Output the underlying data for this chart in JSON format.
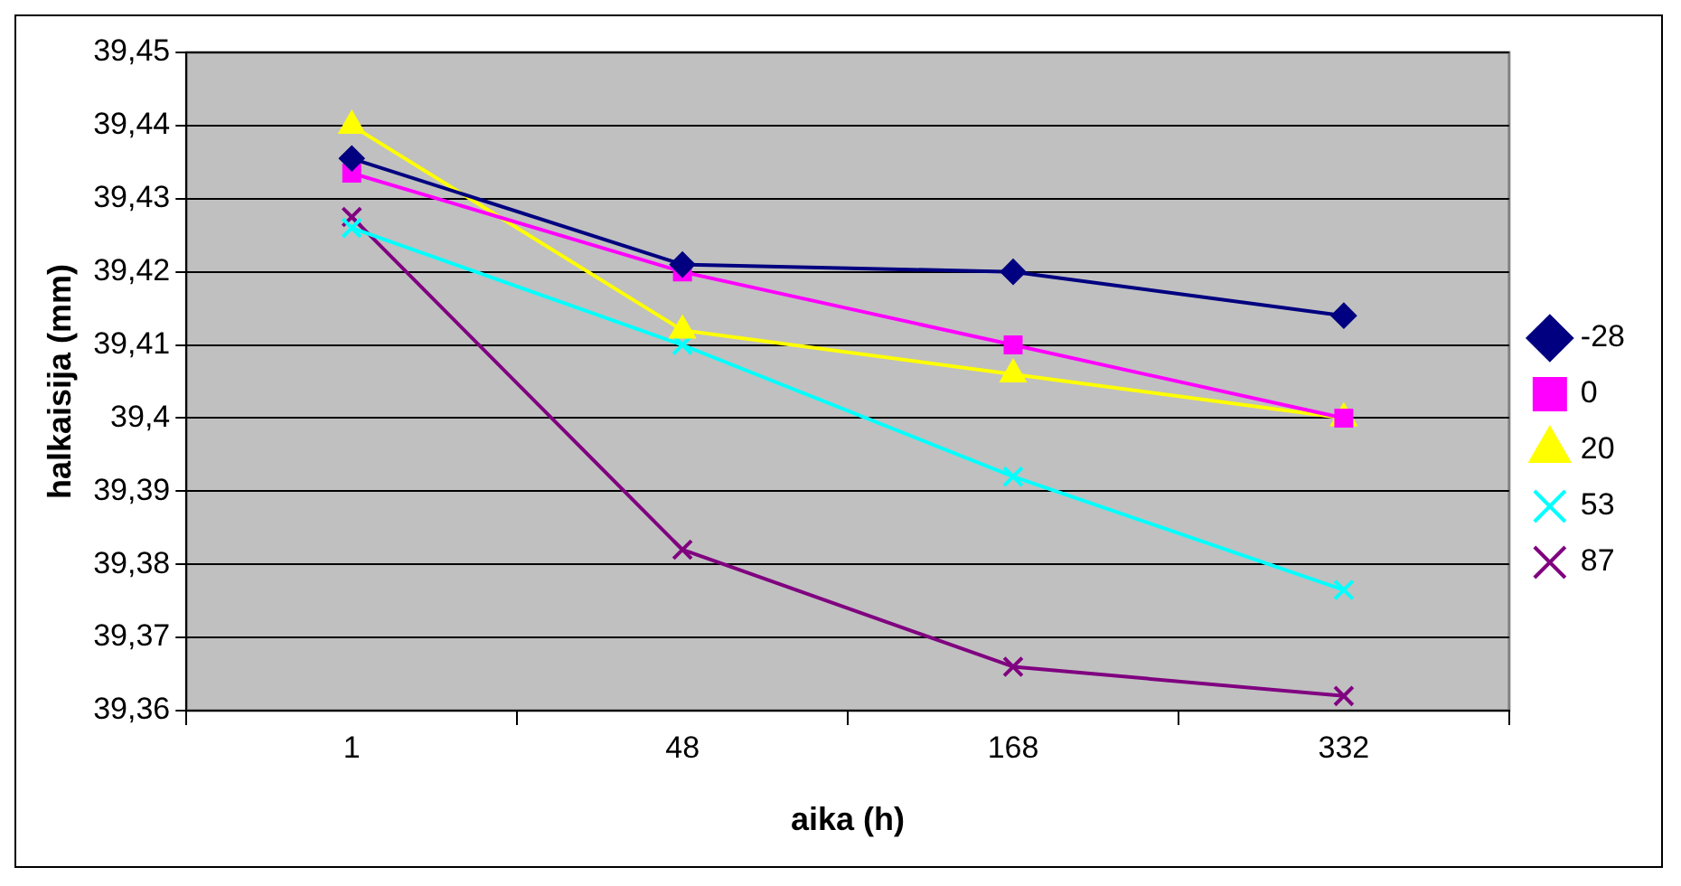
{
  "chart_data": {
    "type": "line",
    "xlabel": "aika (h)",
    "ylabel": "halkaisija (mm)",
    "categories": [
      "1",
      "48",
      "168",
      "332"
    ],
    "series": [
      {
        "name": "-28",
        "color": "#000080",
        "marker": "diamond",
        "values": [
          39.4355,
          39.421,
          39.42,
          39.414
        ]
      },
      {
        "name": "0",
        "color": "#ff00ff",
        "marker": "square",
        "values": [
          39.4335,
          39.42,
          39.41,
          39.4
        ]
      },
      {
        "name": "20",
        "color": "#ffff00",
        "marker": "triangle",
        "values": [
          39.44,
          39.412,
          39.406,
          39.4
        ]
      },
      {
        "name": "53",
        "color": "#00ffff",
        "marker": "cross",
        "values": [
          39.426,
          39.41,
          39.392,
          39.3765
        ]
      },
      {
        "name": "87",
        "color": "#800080",
        "marker": "cross",
        "values": [
          39.4275,
          39.382,
          39.366,
          39.362
        ]
      }
    ],
    "ylim": [
      39.36,
      39.45
    ],
    "yticks": [
      {
        "value": 39.36,
        "label": "39,36"
      },
      {
        "value": 39.37,
        "label": "39,37"
      },
      {
        "value": 39.38,
        "label": "39,38"
      },
      {
        "value": 39.39,
        "label": "39,39"
      },
      {
        "value": 39.4,
        "label": "39,4"
      },
      {
        "value": 39.41,
        "label": "39,41"
      },
      {
        "value": 39.42,
        "label": "39,42"
      },
      {
        "value": 39.43,
        "label": "39,43"
      },
      {
        "value": 39.44,
        "label": "39,44"
      },
      {
        "value": 39.45,
        "label": "39,45"
      }
    ],
    "grid": "y",
    "legend": "right"
  }
}
